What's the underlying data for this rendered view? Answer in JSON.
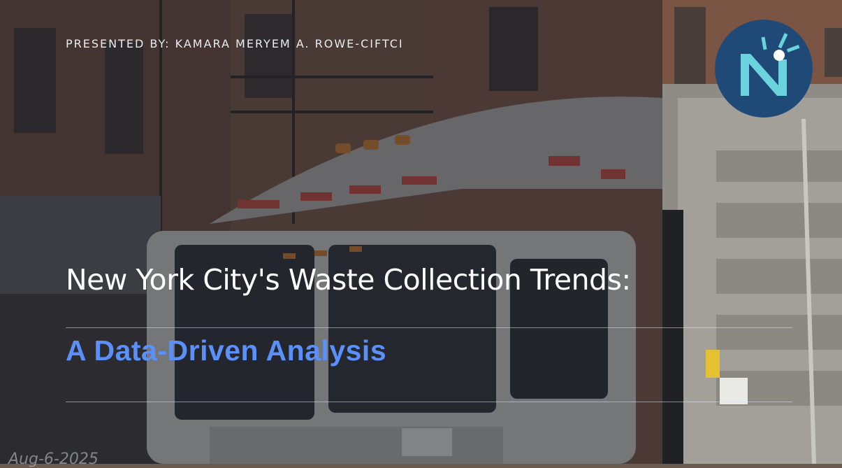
{
  "slide": {
    "presenter": "PRESENTED BY: KAMARA MERYEM A. ROWE-CIFTCI",
    "title": "New York City's Waste Collection Trends:",
    "subtitle": "A Data-Driven Analysis",
    "date": "Aug-6-2025"
  },
  "logo": {
    "icon": "n-clock-logo-icon",
    "bg_color": "#1f4a78",
    "fg_color": "#6ad3dc"
  },
  "colors": {
    "subtitle_accent": "#5b8ff9",
    "overlay": "#191e26"
  }
}
